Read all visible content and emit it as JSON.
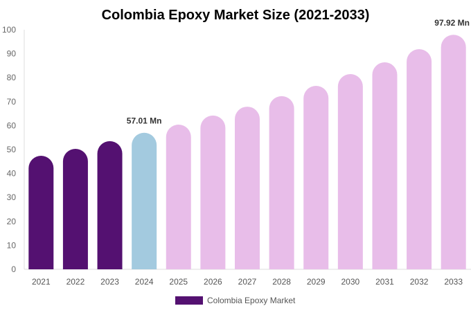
{
  "chart_data": {
    "type": "bar",
    "title": "Colombia Epoxy Market Size (2021-2033)",
    "xlabel": "",
    "ylabel": "",
    "ylim": [
      0,
      100
    ],
    "yticks": [
      0,
      10,
      20,
      30,
      40,
      50,
      60,
      70,
      80,
      90,
      100
    ],
    "grid": false,
    "categories": [
      "2021",
      "2022",
      "2023",
      "2024",
      "2025",
      "2026",
      "2027",
      "2028",
      "2029",
      "2030",
      "2031",
      "2032",
      "2033"
    ],
    "series": [
      {
        "name": "Colombia Epoxy Market",
        "values": [
          47.4,
          50.3,
          53.5,
          57.01,
          60.4,
          64.2,
          67.9,
          72.3,
          76.6,
          81.5,
          86.4,
          91.9,
          97.92
        ]
      }
    ],
    "bar_colors": [
      "#541171",
      "#541171",
      "#541171",
      "#a3cadf",
      "#e8bde9",
      "#e8bde9",
      "#e8bde9",
      "#e8bde9",
      "#e8bde9",
      "#e8bde9",
      "#e8bde9",
      "#e8bde9",
      "#e8bde9"
    ],
    "annotations": [
      {
        "category": "2024",
        "text": "57.01 Mn"
      },
      {
        "category": "2033",
        "text": "97.92 Mn"
      }
    ],
    "legend": {
      "placement": "bottom",
      "label": "Colombia Epoxy Market",
      "color": "#541171"
    }
  }
}
